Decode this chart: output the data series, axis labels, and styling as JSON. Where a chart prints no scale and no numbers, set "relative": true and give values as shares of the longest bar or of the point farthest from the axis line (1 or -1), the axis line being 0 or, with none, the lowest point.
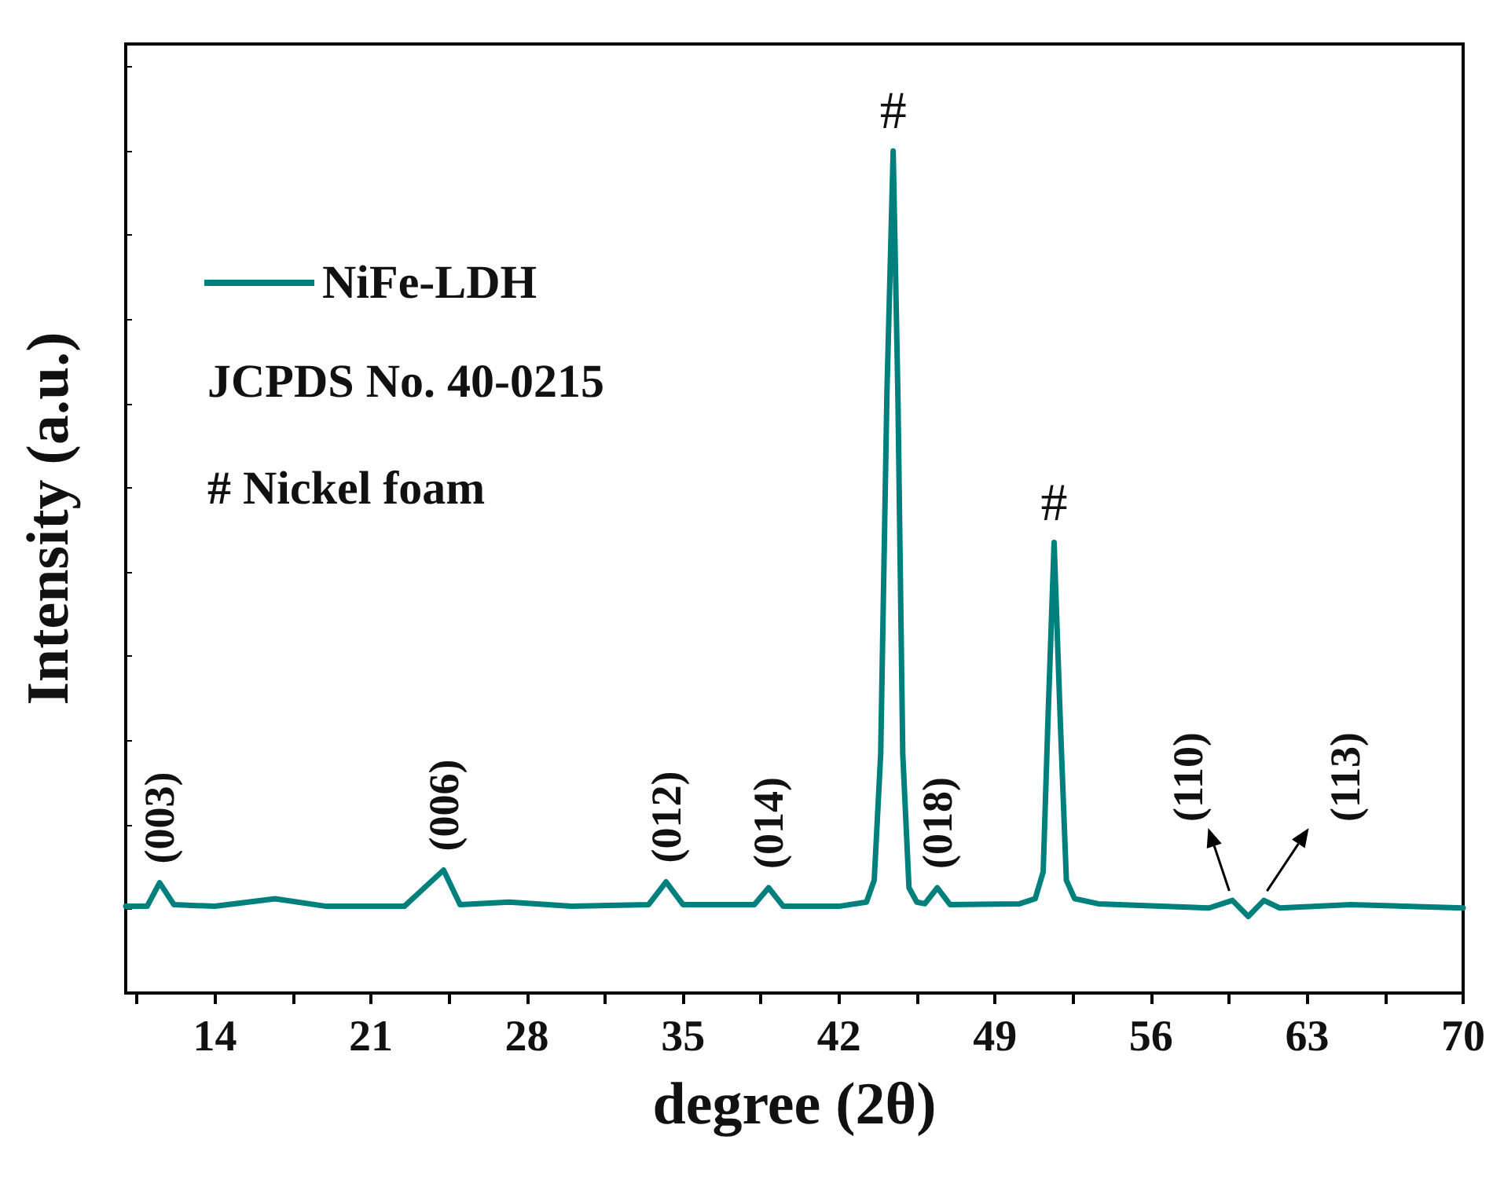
{
  "chart_data": {
    "type": "line",
    "relative": true,
    "xlabel": "degree (2θ)",
    "ylabel": "Intensity (a.u.)",
    "xlim": [
      10,
      70
    ],
    "xticks": [
      14,
      21,
      28,
      35,
      42,
      49,
      56,
      63,
      70
    ],
    "legend": "top left",
    "grid": false,
    "marker": "none",
    "line_style": "solid",
    "series": [
      {
        "name": "NiFe-LDH",
        "color": "#00807c",
        "x": [
          10,
          10.96,
          11.52,
          12.16,
          14,
          16.7,
          19,
          22.5,
          23.4,
          24.26,
          25.0,
          27.2,
          30,
          33.46,
          34.24,
          35.0,
          38.2,
          38.84,
          39.5,
          42,
          43.23,
          43.58,
          43.87,
          44.15,
          44.43,
          44.64,
          44.86,
          45.14,
          45.49,
          45.85,
          46.41,
          46.98,
          50.1,
          50.8,
          51.16,
          51.37,
          51.65,
          51.93,
          52.2,
          52.57,
          53.63,
          56.46,
          58.6,
          59.65,
          60.36,
          61.06,
          61.77,
          64.96,
          70
        ],
        "values": [
          0.103,
          0.103,
          0.131,
          0.105,
          0.103,
          0.112,
          0.103,
          0.103,
          0.125,
          0.146,
          0.105,
          0.108,
          0.103,
          0.105,
          0.132,
          0.105,
          0.105,
          0.125,
          0.103,
          0.103,
          0.108,
          0.134,
          0.284,
          0.713,
          1.0,
          0.713,
          0.284,
          0.125,
          0.108,
          0.106,
          0.125,
          0.105,
          0.106,
          0.112,
          0.144,
          0.321,
          0.535,
          0.321,
          0.134,
          0.112,
          0.106,
          0.103,
          0.101,
          0.11,
          0.091,
          0.11,
          0.101,
          0.105,
          0.101
        ]
      }
    ],
    "annotations": [
      {
        "text": "(003)",
        "x": 11.52,
        "y": 0.131
      },
      {
        "text": "(006)",
        "x": 24.26,
        "y": 0.146
      },
      {
        "text": "(012)",
        "x": 34.24,
        "y": 0.132
      },
      {
        "text": "(014)",
        "x": 38.84,
        "y": 0.125
      },
      {
        "text": "#",
        "x": 44.43,
        "y": 1.0
      },
      {
        "text": "(018)",
        "x": 46.41,
        "y": 0.125
      },
      {
        "text": "#",
        "x": 51.65,
        "y": 0.535
      },
      {
        "text": "(110)",
        "x": 59.65,
        "y": 0.11
      },
      {
        "text": "(113)",
        "x": 61.06,
        "y": 0.11
      },
      "JCPDS No. 40-0215",
      "# Nickel foam"
    ]
  }
}
